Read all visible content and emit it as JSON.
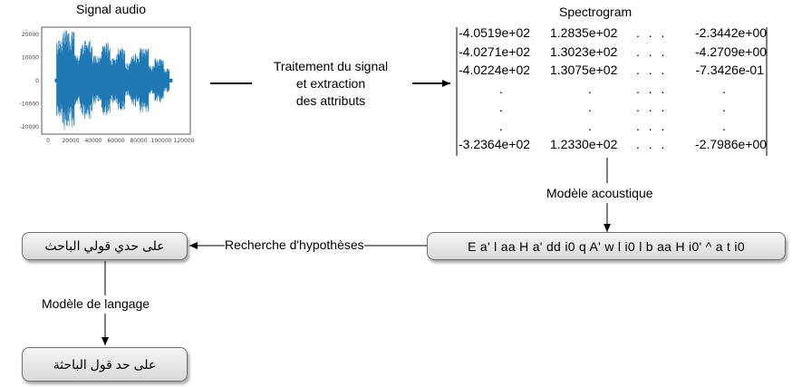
{
  "signal": {
    "title": "Signal audio",
    "y_ticks": [
      "20000",
      "10000",
      "0",
      "-10000",
      "-20000"
    ],
    "x_ticks": [
      "0",
      "20000",
      "40000",
      "60000",
      "80000",
      "100000",
      "120000"
    ],
    "colors": {
      "waveform": "#1f77b4"
    }
  },
  "process_label": "Traitement du signal\net extraction\ndes attributs",
  "spectrogram": {
    "title": "Spectrogram",
    "rows": [
      [
        "-4.0519e+02",
        "1.2835e+02",
        ". . .",
        "-2.3442e+00"
      ],
      [
        "-4.0271e+02",
        "1.3023e+02",
        ". . .",
        "-4.2709e+00"
      ],
      [
        "-4.0224e+02",
        "1.3075e+02",
        ". . .",
        "-7.3426e-01"
      ],
      [
        ".",
        ".",
        ". . .",
        "."
      ],
      [
        ".",
        ".",
        ". . .",
        "."
      ],
      [
        ".",
        ".",
        ". . .",
        "."
      ],
      [
        "-3.2364e+02",
        "1.2330e+02",
        ". . .",
        "-2.7986e+00"
      ]
    ]
  },
  "acoustic_model_label": "Modèle acoustique",
  "phonemes_box": "E a' l aa H a' dd i0 q A' w l i0 l b aa H i0' ^ a t i0",
  "hypothesis_label": "Recherche d'hypothèses",
  "hypothesis_box": "على حدي قولي الباحث",
  "language_model_label": "Modèle de langage",
  "final_box": "على حد قول الباحثة"
}
